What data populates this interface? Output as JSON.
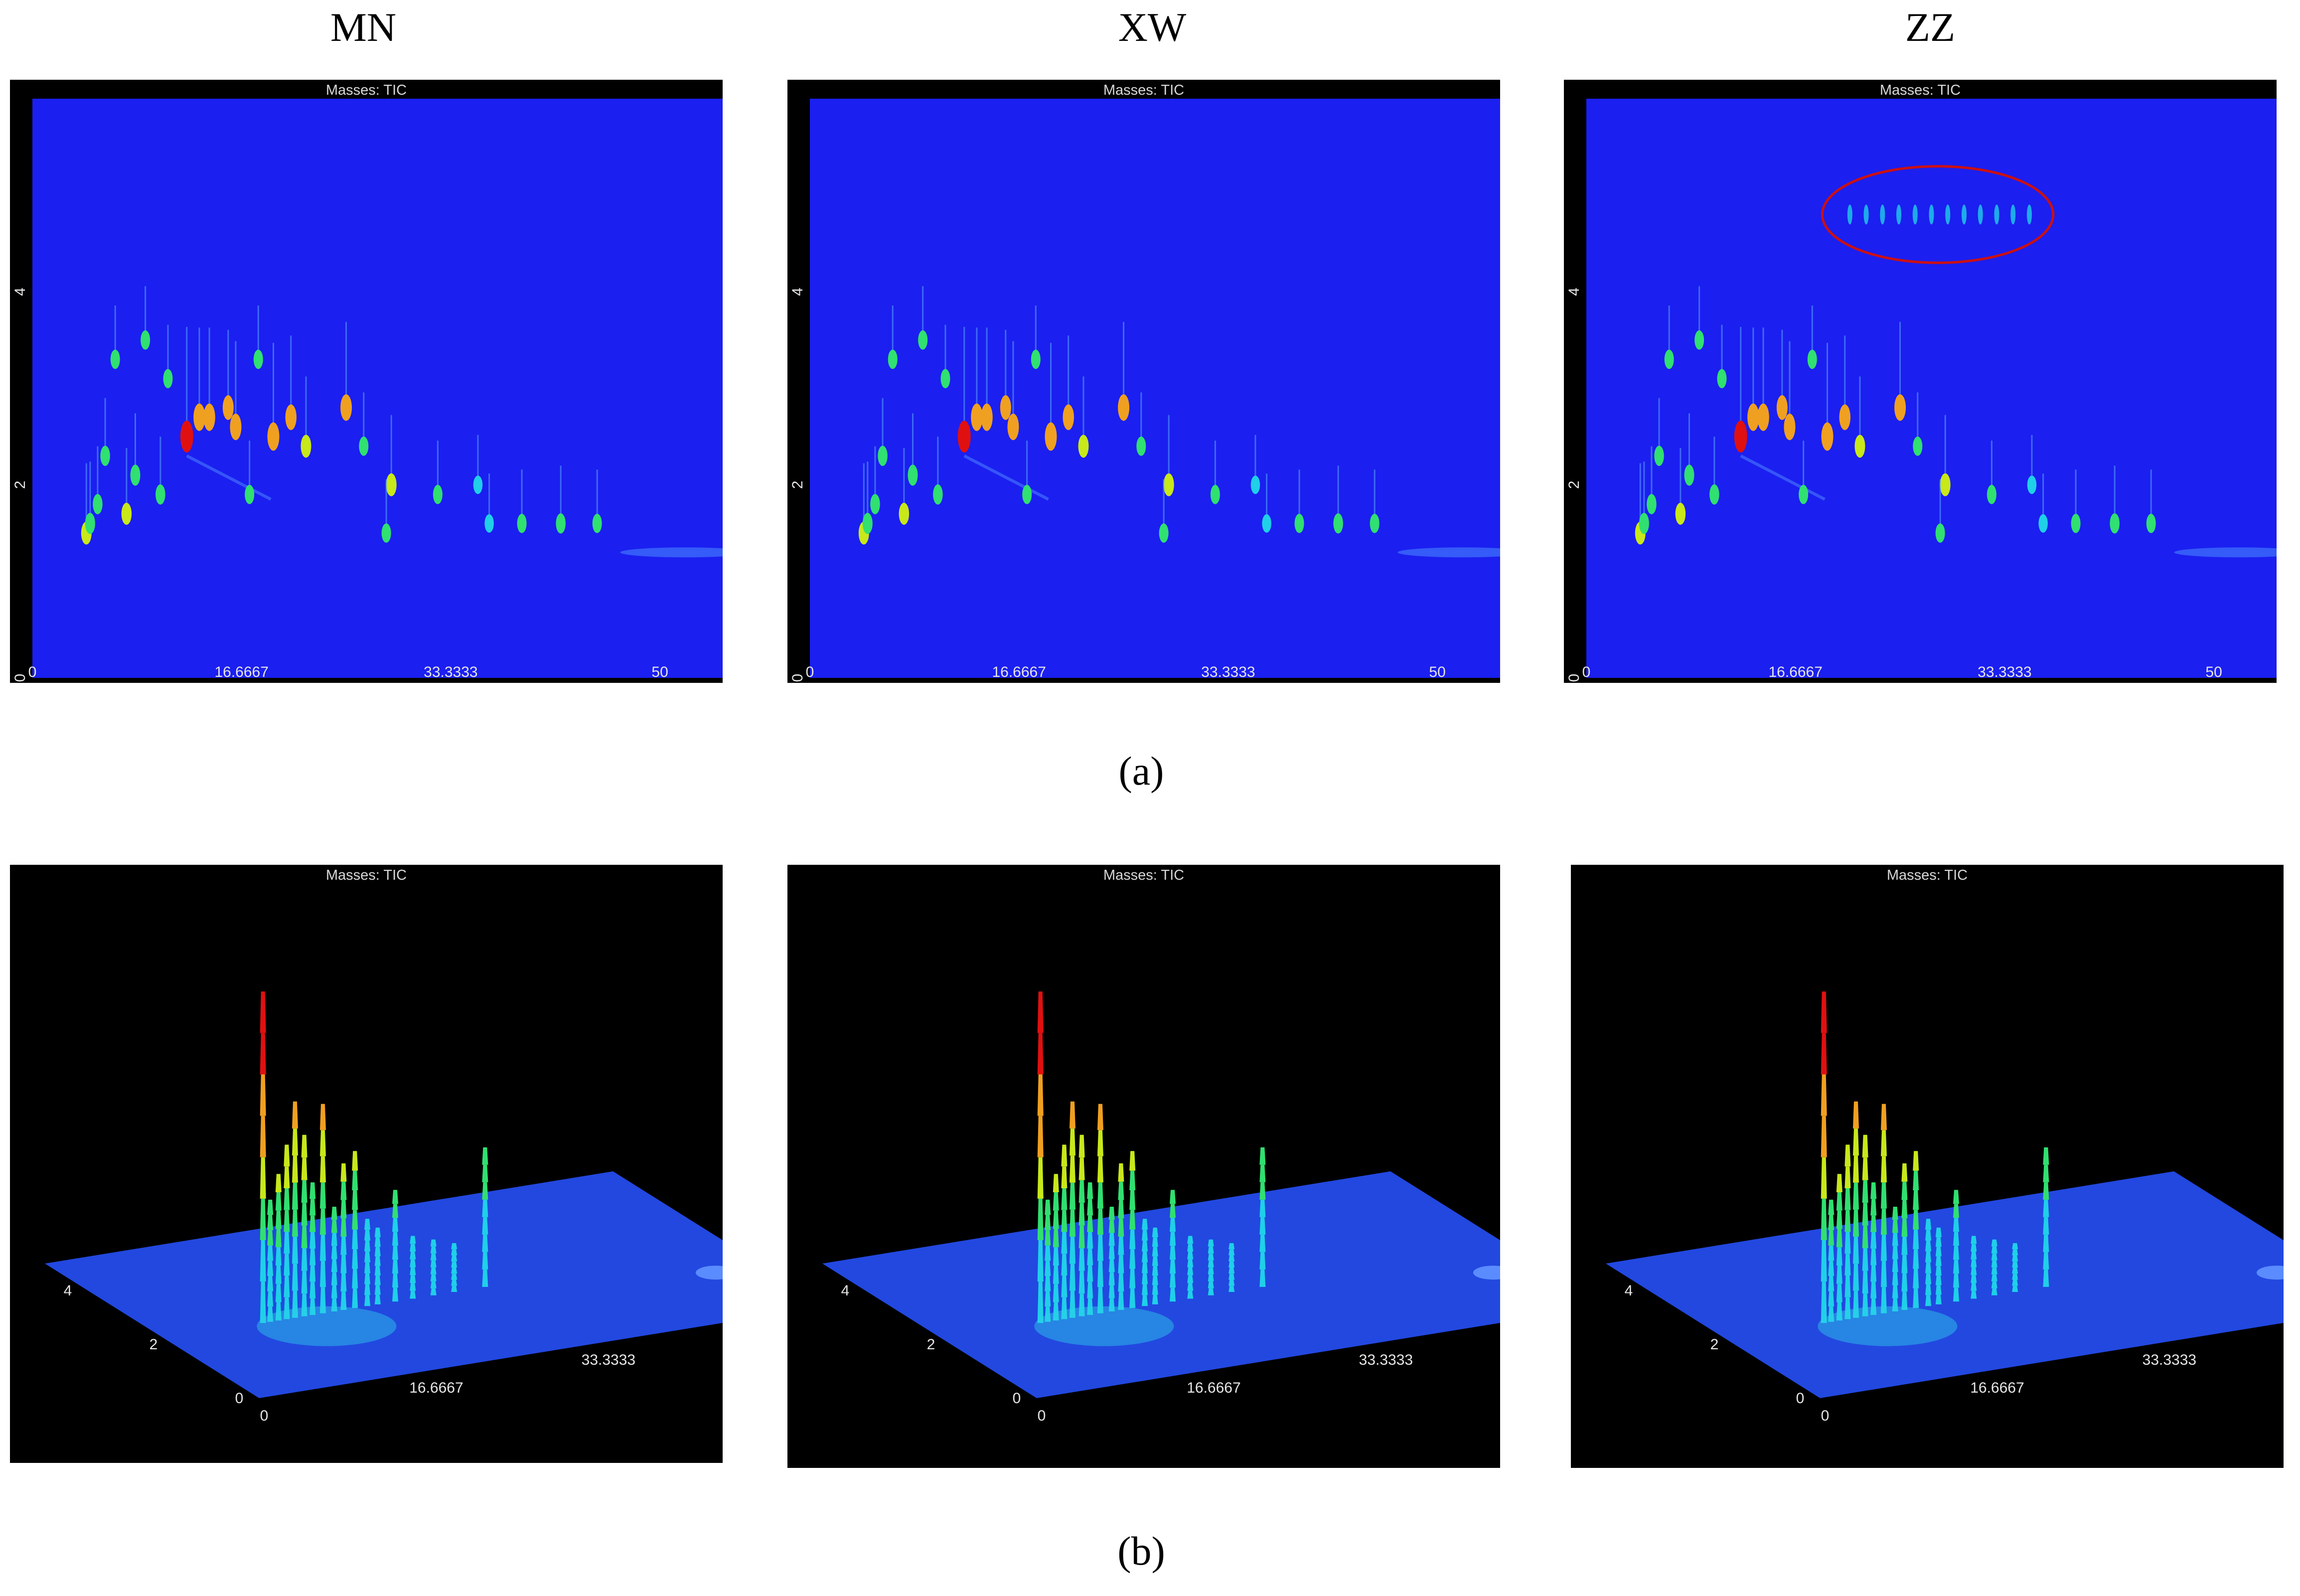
{
  "column_titles": [
    "MN",
    "XW",
    "ZZ"
  ],
  "captions": {
    "a": "(a)",
    "b": "(b)"
  },
  "panel_title": "Masses: TIC",
  "colors": {
    "background": "#1b1ff0",
    "frame": "#000000",
    "ellipse": "#cc1010",
    "peak_low": "#1fd0e8",
    "peak_mid": "#c8e81a",
    "peak_high": "#e01010"
  },
  "chart_data": [
    {
      "type": "heatmap",
      "title": "Masses: TIC",
      "panels": [
        "MN",
        "XW",
        "ZZ"
      ],
      "x_ticks": [
        "0",
        "16.6667",
        "33.3333",
        "50"
      ],
      "x_tick_values": [
        0,
        16.6667,
        33.3333,
        50
      ],
      "y_ticks": [
        "0",
        "2",
        "4"
      ],
      "y_tick_values": [
        0,
        2,
        4
      ],
      "xlim": [
        0,
        55
      ],
      "ylim": [
        0,
        6
      ],
      "annotation": {
        "panel": "ZZ",
        "shape": "ellipse",
        "center": [
          28,
          4.8
        ],
        "rx": 9.2,
        "ry": 0.5
      },
      "peaks": [
        {
          "x": 4.3,
          "y": 1.5,
          "i": 0.5
        },
        {
          "x": 4.6,
          "y": 1.6,
          "i": 0.4
        },
        {
          "x": 5.2,
          "y": 1.8,
          "i": 0.35
        },
        {
          "x": 5.8,
          "y": 2.3,
          "i": 0.35
        },
        {
          "x": 6.6,
          "y": 3.3,
          "i": 0.3
        },
        {
          "x": 7.5,
          "y": 1.7,
          "i": 0.45
        },
        {
          "x": 8.2,
          "y": 2.1,
          "i": 0.4
        },
        {
          "x": 9.0,
          "y": 3.5,
          "i": 0.3
        },
        {
          "x": 10.2,
          "y": 1.9,
          "i": 0.35
        },
        {
          "x": 10.8,
          "y": 3.1,
          "i": 0.3
        },
        {
          "x": 12.3,
          "y": 2.5,
          "i": 1.0
        },
        {
          "x": 13.3,
          "y": 2.7,
          "i": 0.75
        },
        {
          "x": 14.1,
          "y": 2.7,
          "i": 0.75
        },
        {
          "x": 15.6,
          "y": 2.8,
          "i": 0.6
        },
        {
          "x": 16.2,
          "y": 2.6,
          "i": 0.7
        },
        {
          "x": 17.3,
          "y": 1.9,
          "i": 0.3
        },
        {
          "x": 18.0,
          "y": 3.3,
          "i": 0.3
        },
        {
          "x": 19.2,
          "y": 2.5,
          "i": 0.8
        },
        {
          "x": 20.6,
          "y": 2.7,
          "i": 0.65
        },
        {
          "x": 21.8,
          "y": 2.4,
          "i": 0.5
        },
        {
          "x": 25.0,
          "y": 2.8,
          "i": 0.7
        },
        {
          "x": 26.4,
          "y": 2.4,
          "i": 0.3
        },
        {
          "x": 28.6,
          "y": 2.0,
          "i": 0.5
        },
        {
          "x": 28.2,
          "y": 1.5,
          "i": 0.3
        },
        {
          "x": 32.3,
          "y": 1.9,
          "i": 0.3
        },
        {
          "x": 35.5,
          "y": 2.0,
          "i": 0.25
        },
        {
          "x": 36.4,
          "y": 1.6,
          "i": 0.25
        },
        {
          "x": 39.0,
          "y": 1.6,
          "i": 0.3
        },
        {
          "x": 42.1,
          "y": 1.6,
          "i": 0.35
        },
        {
          "x": 45.0,
          "y": 1.6,
          "i": 0.3
        }
      ]
    },
    {
      "type": "surface",
      "title": "Masses: TIC",
      "panels": [
        "MN",
        "XW",
        "ZZ"
      ],
      "x_ticks": [
        "0",
        "16.6667",
        "33.3333",
        "50"
      ],
      "y_ticks": [
        "0",
        "2",
        "4"
      ],
      "xlim": [
        0,
        55
      ],
      "ylim": [
        0,
        5
      ],
      "peak_heights": [
        {
          "x": 9.5,
          "h": 0.95
        },
        {
          "x": 10.2,
          "h": 0.35
        },
        {
          "x": 11.0,
          "h": 0.42
        },
        {
          "x": 11.8,
          "h": 0.5
        },
        {
          "x": 12.6,
          "h": 0.62
        },
        {
          "x": 13.5,
          "h": 0.52
        },
        {
          "x": 14.3,
          "h": 0.38
        },
        {
          "x": 15.3,
          "h": 0.6
        },
        {
          "x": 16.4,
          "h": 0.3
        },
        {
          "x": 17.3,
          "h": 0.42
        },
        {
          "x": 18.4,
          "h": 0.45
        },
        {
          "x": 19.6,
          "h": 0.25
        },
        {
          "x": 20.6,
          "h": 0.22
        },
        {
          "x": 22.3,
          "h": 0.32
        },
        {
          "x": 24.0,
          "h": 0.18
        },
        {
          "x": 26.0,
          "h": 0.16
        },
        {
          "x": 28.0,
          "h": 0.14
        },
        {
          "x": 31.0,
          "h": 0.4
        }
      ]
    }
  ]
}
